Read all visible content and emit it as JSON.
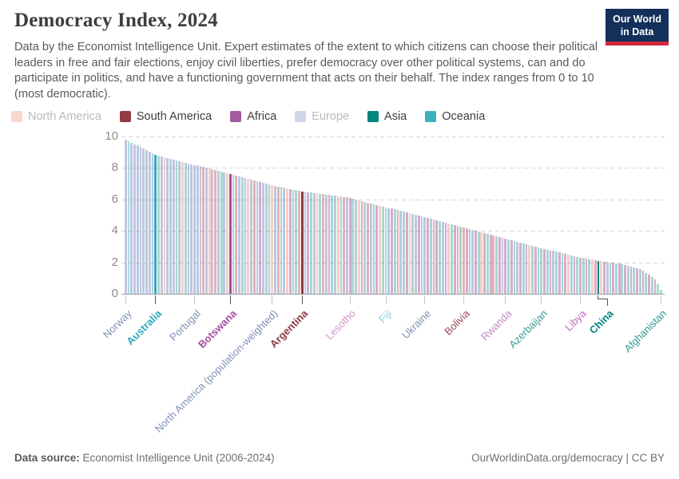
{
  "header": {
    "title": "Democracy Index, 2024",
    "logo_line1": "Our World",
    "logo_line2": "in Data"
  },
  "subtitle": "Data by the Economist Intelligence Unit. Expert estimates of the extent to which citizens can choose their political leaders in free and fair elections, enjoy civil liberties, prefer democracy over other political systems, can and do participate in politics, and have a functioning government that acts on their behalf. The index ranges from 0 to 10 (most democratic).",
  "legend": [
    {
      "label": "North America",
      "code": "N",
      "swatch": "#f9d8ce",
      "faded": true
    },
    {
      "label": "South America",
      "code": "S",
      "swatch": "#923b44",
      "faded": false
    },
    {
      "label": "Africa",
      "code": "F",
      "swatch": "#a35a9f",
      "faded": false
    },
    {
      "label": "Europe",
      "code": "E",
      "swatch": "#cdd7e9",
      "faded": true
    },
    {
      "label": "Asia",
      "code": "A",
      "swatch": "#00847e",
      "faded": false
    },
    {
      "label": "Oceania",
      "code": "O",
      "swatch": "#3eb1c0",
      "faded": false
    }
  ],
  "colors": {
    "faded": {
      "E": "#bdc8df",
      "N": "#f4cfc6",
      "S": "#e3b3ba",
      "F": "#d5accf",
      "A": "#a9d7d1",
      "O": "#a9dbe2"
    },
    "strong": {
      "E": "#4c6a9c",
      "N": "#e56e5a",
      "S": "#8b3942",
      "F": "#a3519e",
      "A": "#00847e",
      "O": "#38a7b8"
    }
  },
  "chart_data": {
    "type": "bar",
    "title": "Democracy Index, 2024",
    "xlabel": "",
    "ylabel": "",
    "ylim": [
      0,
      10
    ],
    "yticks": [
      0,
      2,
      4,
      6,
      8,
      10
    ],
    "grid": "dashed-horizontal",
    "legend_position": "top",
    "continent_legend": [
      "North America",
      "South America",
      "Africa",
      "Europe",
      "Asia",
      "Oceania"
    ],
    "labeled_points": [
      {
        "label": "Norway",
        "value": 9.8,
        "continent": "Europe",
        "index": 0,
        "color": "#8091b4",
        "bold": false
      },
      {
        "label": "Australia",
        "value": 8.9,
        "continent": "Oceania",
        "index": 10,
        "color": "#2ca8bc",
        "bold": true
      },
      {
        "label": "Portugal",
        "value": 8.2,
        "continent": "Europe",
        "index": 23,
        "color": "#8091b4",
        "bold": false
      },
      {
        "label": "Botswana",
        "value": 7.6,
        "continent": "Africa",
        "index": 35,
        "color": "#a3519e",
        "bold": true
      },
      {
        "label": "North America (population-weighted)",
        "value": 6.9,
        "continent": "North America",
        "index": 49,
        "color": "#8091b4",
        "bold": false
      },
      {
        "label": "Argentina",
        "value": 6.5,
        "continent": "South America",
        "index": 59,
        "color": "#8b3942",
        "bold": true
      },
      {
        "label": "Lesotho",
        "value": 6.1,
        "continent": "Africa",
        "index": 75,
        "color": "#d393cb",
        "bold": false
      },
      {
        "label": "Fiji",
        "value": 5.5,
        "continent": "Oceania",
        "index": 87,
        "color": "#8ed1dc",
        "bold": false
      },
      {
        "label": "Ukraine",
        "value": 4.9,
        "continent": "Europe",
        "index": 100,
        "color": "#8091b4",
        "bold": false
      },
      {
        "label": "Bolivia",
        "value": 4.2,
        "continent": "South America",
        "index": 113,
        "color": "#9d4750",
        "bold": false
      },
      {
        "label": "Rwanda",
        "value": 3.5,
        "continent": "Africa",
        "index": 127,
        "color": "#c689c5",
        "bold": false
      },
      {
        "label": "Azerbaijan",
        "value": 2.9,
        "continent": "Asia",
        "index": 139,
        "color": "#3a9b97",
        "bold": false
      },
      {
        "label": "Libya",
        "value": 2.3,
        "continent": "Africa",
        "index": 152,
        "color": "#c16bbd",
        "bold": false
      },
      {
        "label": "China",
        "value": 2.1,
        "continent": "Asia",
        "index": 158,
        "color": "#00847e",
        "bold": true,
        "jog": 12
      },
      {
        "label": "Afghanistan",
        "value": 0.3,
        "continent": "Asia",
        "index": 179,
        "color": "#2f9a94",
        "bold": false
      }
    ],
    "highlights": {
      "10": "Australia",
      "35": "Botswana",
      "59": "Argentina",
      "158": "China"
    },
    "bars": {
      "values": [
        9.81,
        9.71,
        9.61,
        9.52,
        9.42,
        9.33,
        9.23,
        9.14,
        9.04,
        8.95,
        8.85,
        8.8,
        8.75,
        8.7,
        8.65,
        8.6,
        8.55,
        8.5,
        8.45,
        8.4,
        8.35,
        8.3,
        8.25,
        8.2,
        8.15,
        8.1,
        8.05,
        8.0,
        7.95,
        7.9,
        7.85,
        7.8,
        7.75,
        7.7,
        7.65,
        7.6,
        7.55,
        7.5,
        7.45,
        7.4,
        7.35,
        7.3,
        7.25,
        7.2,
        7.15,
        7.1,
        7.05,
        7.0,
        6.95,
        6.9,
        6.86,
        6.82,
        6.78,
        6.74,
        6.7,
        6.66,
        6.62,
        6.58,
        6.54,
        6.5,
        6.48,
        6.45,
        6.43,
        6.4,
        6.38,
        6.35,
        6.33,
        6.3,
        6.28,
        6.25,
        6.23,
        6.2,
        6.18,
        6.15,
        6.13,
        6.1,
        6.05,
        6.0,
        5.95,
        5.9,
        5.85,
        5.8,
        5.75,
        5.7,
        5.65,
        5.6,
        5.55,
        5.5,
        5.45,
        5.41,
        5.36,
        5.32,
        5.27,
        5.22,
        5.18,
        5.13,
        5.08,
        5.04,
        4.99,
        4.95,
        4.9,
        4.85,
        4.79,
        4.74,
        4.68,
        4.63,
        4.58,
        4.52,
        4.47,
        4.41,
        4.36,
        4.31,
        4.25,
        4.2,
        4.15,
        4.1,
        4.05,
        4.0,
        3.95,
        3.9,
        3.85,
        3.8,
        3.75,
        3.7,
        3.65,
        3.6,
        3.55,
        3.5,
        3.45,
        3.4,
        3.35,
        3.3,
        3.25,
        3.2,
        3.15,
        3.1,
        3.05,
        3.0,
        2.95,
        2.9,
        2.85,
        2.81,
        2.76,
        2.72,
        2.67,
        2.62,
        2.58,
        2.53,
        2.48,
        2.44,
        2.39,
        2.35,
        2.3,
        2.27,
        2.23,
        2.2,
        2.17,
        2.13,
        2.1,
        2.08,
        2.05,
        2.03,
        2.0,
        1.98,
        1.95,
        1.93,
        1.9,
        1.85,
        1.8,
        1.75,
        1.7,
        1.65,
        1.6,
        1.45,
        1.3,
        1.2,
        1.05,
        0.9,
        0.6,
        0.26
      ],
      "continents": "EOEEEEEEEEOAENEEEAENAEEEEESENESEAENFESEAENESEFEAENESAENFEASSEFAENASEFAENASEFAENFASEAFNAOEFASEAFNAEFAEFASFAEFNAFSASFAEFANFAFSAFEFAFAEFAFNAFAAFAFEAFAFNAFAFAFANFANFEAFAFAFAFAFAFAFAFAA"
    }
  },
  "footer": {
    "source_label": "Data source:",
    "source_text": " Economist Intelligence Unit (2006-2024)",
    "link_text": "OurWorldinData.org/democracy | CC BY"
  }
}
